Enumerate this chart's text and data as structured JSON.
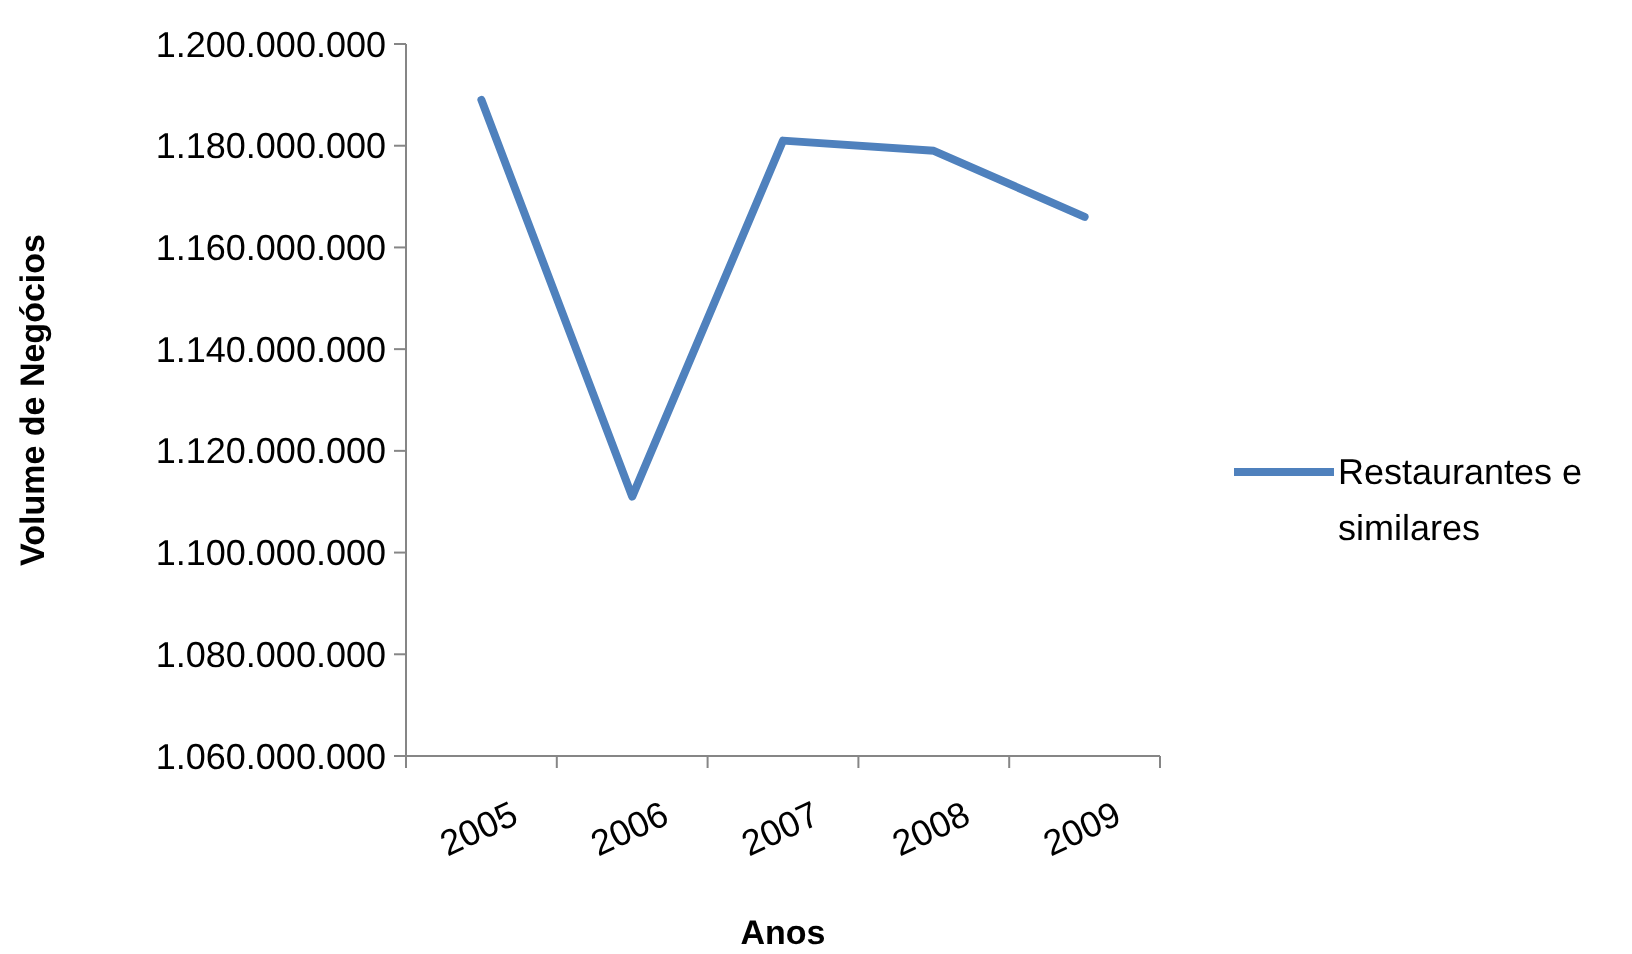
{
  "chart_data": {
    "type": "line",
    "xlabel": "Anos",
    "ylabel": "Volume de Negócios",
    "categories": [
      "2005",
      "2006",
      "2007",
      "2008",
      "2009"
    ],
    "series": [
      {
        "name": "Restaurantes e similares",
        "color": "#4f81bd",
        "values": [
          1189000000,
          1111000000,
          1181000000,
          1179000000,
          1166000000
        ]
      }
    ],
    "ylim": [
      1060000000,
      1200000000
    ],
    "yticks": [
      {
        "value": 1060000000,
        "label": "1.060.000.000"
      },
      {
        "value": 1080000000,
        "label": "1.080.000.000"
      },
      {
        "value": 1100000000,
        "label": "1.100.000.000"
      },
      {
        "value": 1120000000,
        "label": "1.120.000.000"
      },
      {
        "value": 1140000000,
        "label": "1.140.000.000"
      },
      {
        "value": 1160000000,
        "label": "1.160.000.000"
      },
      {
        "value": 1180000000,
        "label": "1.180.000.000"
      },
      {
        "value": 1200000000,
        "label": "1.200.000.000"
      }
    ],
    "grid": false,
    "legend": "right",
    "marker": "none",
    "line_style": "solid"
  }
}
